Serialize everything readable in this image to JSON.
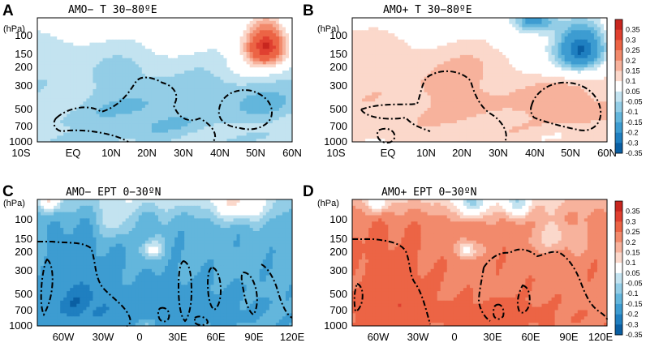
{
  "colors": {
    "levels": [
      "#0a5fa3",
      "#1f7fc0",
      "#3d9cd1",
      "#63b6dc",
      "#93cde6",
      "#c3e3f0",
      "#ffffff",
      "#fbd8cb",
      "#f7b29c",
      "#f28a6c",
      "#ec6445",
      "#e04030",
      "#c8261f"
    ],
    "contour": "#000000",
    "axis": "#000000"
  },
  "colorbar": {
    "labels": [
      "0.35",
      "0.3",
      "0.25",
      "0.2",
      "0.15",
      "0.1",
      "0.05",
      "-0.05",
      "-0.1",
      "-0.15",
      "-0.2",
      "-0.3",
      "-0.35"
    ]
  },
  "chart_data": [
    {
      "type": "heatmap",
      "panel": "A",
      "title": "AMO− T 30−80ºE",
      "ylabel": "(hPa)",
      "yticks": [
        "100",
        "150",
        "200",
        "300",
        "500",
        "700",
        "1000"
      ],
      "xticks": [
        "10S",
        "EQ",
        "10N",
        "20N",
        "30N",
        "40N",
        "50N",
        "60N"
      ],
      "xrange": [
        -10,
        60
      ],
      "yrange_hPa": [
        100,
        1000
      ],
      "base": -0.08,
      "features": [
        {
          "x": 10,
          "p": 80,
          "sx": 28,
          "sp": 55,
          "a": 0.11
        },
        {
          "x": 15,
          "p": 60,
          "sx": 10,
          "sp": 30,
          "a": 0.12
        },
        {
          "x": 53,
          "p": 170,
          "sx": 6,
          "sp": 70,
          "a": 0.42
        },
        {
          "x": 47,
          "p": 250,
          "sx": 9,
          "sp": 90,
          "a": 0.08
        },
        {
          "x": 20,
          "p": 600,
          "sx": 18,
          "sp": 350,
          "a": -0.08
        },
        {
          "x": 50,
          "p": 450,
          "sx": 10,
          "sp": 200,
          "a": -0.09
        },
        {
          "x": 25,
          "p": 150,
          "sx": 20,
          "sp": 60,
          "a": 0.06
        },
        {
          "x": 0,
          "p": 950,
          "sx": 10,
          "sp": 120,
          "a": -0.03
        }
      ]
    },
    {
      "type": "heatmap",
      "panel": "B",
      "title": "AMO+ T 30−80ºE",
      "ylabel": "(hPa)",
      "yticks": [
        "100",
        "150",
        "200",
        "300",
        "500",
        "700",
        "1000"
      ],
      "xticks": [
        "10S",
        "EQ",
        "10N",
        "20N",
        "30N",
        "40N",
        "50N",
        "60N"
      ],
      "xrange": [
        -10,
        60
      ],
      "yrange_hPa": [
        100,
        1000
      ],
      "base": 0.07,
      "features": [
        {
          "x": 10,
          "p": 80,
          "sx": 28,
          "sp": 55,
          "a": -0.08
        },
        {
          "x": 15,
          "p": 60,
          "sx": 10,
          "sp": 30,
          "a": -0.06
        },
        {
          "x": 53,
          "p": 180,
          "sx": 7,
          "sp": 80,
          "a": -0.4
        },
        {
          "x": 40,
          "p": 105,
          "sx": 6,
          "sp": 25,
          "a": -0.25
        },
        {
          "x": 47,
          "p": 250,
          "sx": 9,
          "sp": 90,
          "a": -0.08
        },
        {
          "x": 20,
          "p": 450,
          "sx": 18,
          "sp": 300,
          "a": 0.05
        },
        {
          "x": 50,
          "p": 500,
          "sx": 10,
          "sp": 200,
          "a": 0.08
        },
        {
          "x": 30,
          "p": 150,
          "sx": 20,
          "sp": 60,
          "a": -0.05
        }
      ]
    },
    {
      "type": "heatmap",
      "panel": "C",
      "title": "AMO− EPT 0−30ºN",
      "ylabel": "(hPa)",
      "yticks": [
        "100",
        "150",
        "200",
        "300",
        "500",
        "700",
        "1000"
      ],
      "xticks": [
        "60W",
        "30W",
        "0",
        "30E",
        "60E",
        "90E",
        "120E"
      ],
      "xrange": [
        -80,
        120
      ],
      "yrange_hPa": [
        100,
        1000
      ],
      "base": -0.18,
      "features": [
        {
          "x": 20,
          "p": 80,
          "sx": 100,
          "sp": 45,
          "a": 0.14
        },
        {
          "x": -70,
          "p": 100,
          "sx": 8,
          "sp": 25,
          "a": 0.22
        },
        {
          "x": -20,
          "p": 150,
          "sx": 15,
          "sp": 50,
          "a": 0.1
        },
        {
          "x": 80,
          "p": 110,
          "sx": 20,
          "sp": 40,
          "a": 0.18
        },
        {
          "x": 10,
          "p": 250,
          "sx": 8,
          "sp": 40,
          "a": 0.16
        },
        {
          "x": -50,
          "p": 650,
          "sx": 30,
          "sp": 400,
          "a": -0.14
        },
        {
          "x": 30,
          "p": 750,
          "sx": 60,
          "sp": 300,
          "a": -0.08
        },
        {
          "x": 5,
          "p": 950,
          "sx": 8,
          "sp": 80,
          "a": 0.06
        }
      ]
    },
    {
      "type": "heatmap",
      "panel": "D",
      "title": "AMO+ EPT 0−30ºN",
      "ylabel": "(hPa)",
      "yticks": [
        "100",
        "150",
        "200",
        "300",
        "500",
        "700",
        "1000"
      ],
      "xticks": [
        "60W",
        "30W",
        "0",
        "30E",
        "60E",
        "90E",
        "120E"
      ],
      "xrange": [
        -80,
        120
      ],
      "yrange_hPa": [
        100,
        1000
      ],
      "base": 0.18,
      "features": [
        {
          "x": 20,
          "p": 80,
          "sx": 100,
          "sp": 45,
          "a": -0.15
        },
        {
          "x": -60,
          "p": 100,
          "sx": 8,
          "sp": 25,
          "a": -0.2
        },
        {
          "x": 15,
          "p": 110,
          "sx": 10,
          "sp": 30,
          "a": -0.22
        },
        {
          "x": 50,
          "p": 110,
          "sx": 10,
          "sp": 30,
          "a": -0.18
        },
        {
          "x": 10,
          "p": 250,
          "sx": 8,
          "sp": 40,
          "a": -0.16
        },
        {
          "x": -50,
          "p": 650,
          "sx": 30,
          "sp": 400,
          "a": 0.1
        },
        {
          "x": 30,
          "p": 850,
          "sx": 40,
          "sp": 200,
          "a": 0.1
        },
        {
          "x": 80,
          "p": 200,
          "sx": 20,
          "sp": 60,
          "a": -0.1
        }
      ]
    }
  ]
}
